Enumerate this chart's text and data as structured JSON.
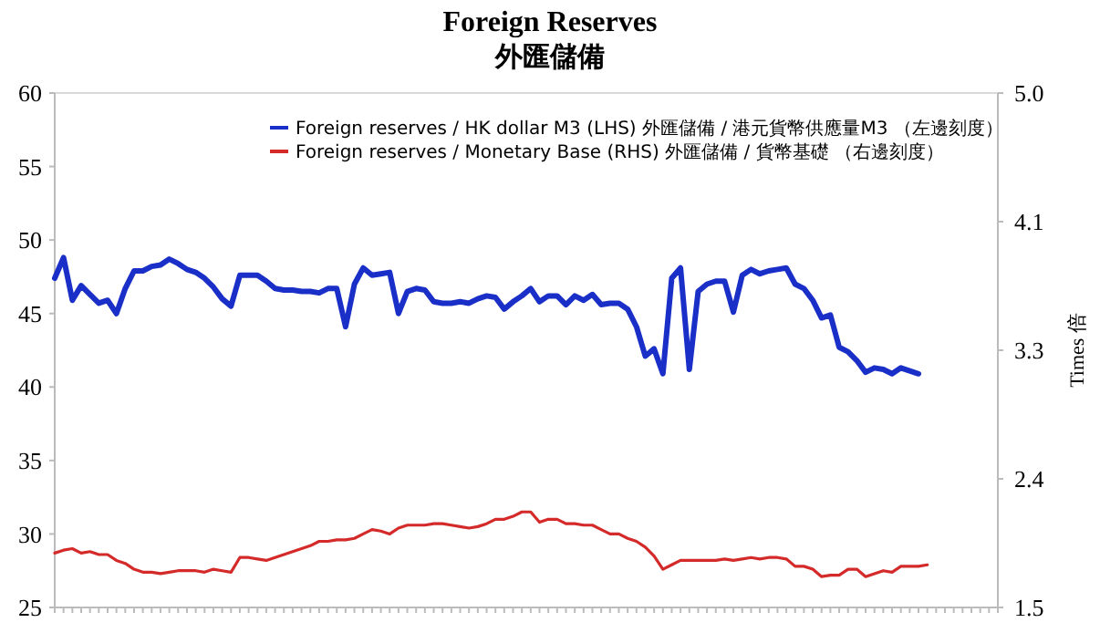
{
  "chart_data": {
    "type": "line",
    "title": "Foreign Reserves",
    "subtitle": "外匯儲備",
    "y2label": "Times 倍",
    "categories": [
      null,
      null,
      null,
      null,
      null,
      null,
      null,
      null,
      null,
      null,
      null,
      null,
      null,
      null,
      null,
      null,
      null,
      null,
      null,
      null,
      null,
      null,
      null,
      null,
      null,
      null,
      null,
      null,
      null,
      null,
      null,
      null,
      null,
      null,
      null,
      null,
      null,
      null,
      null,
      null,
      null,
      null,
      null,
      null,
      null,
      null,
      null,
      null,
      null,
      null,
      null,
      null,
      null,
      null,
      null,
      null,
      null,
      null,
      null,
      null,
      null,
      null,
      null,
      null,
      null,
      null,
      null,
      null,
      null,
      null,
      null,
      null,
      null,
      null,
      null,
      null,
      null,
      null,
      null,
      null,
      null,
      null,
      null,
      null,
      null,
      null,
      null,
      null,
      null,
      null,
      null,
      null,
      null,
      null,
      null,
      null,
      null,
      null,
      null,
      null,
      null,
      null,
      null,
      null,
      null,
      null,
      null,
      null
    ],
    "series": [
      {
        "name": "Foreign reserves / HK dollar M3 (LHS) 外匯儲備 / 港元貨幣供應量M3 （左邊刻度）",
        "color": "#1a2fc8",
        "values": [
          47.4,
          48.8,
          45.9,
          46.9,
          46.3,
          45.7,
          45.9,
          45.0,
          46.7,
          47.9,
          47.9,
          48.2,
          48.3,
          48.7,
          48.4,
          48.0,
          47.8,
          47.4,
          46.8,
          46.0,
          45.5,
          47.6,
          47.6,
          47.6,
          47.2,
          46.7,
          46.6,
          46.6,
          46.5,
          46.5,
          46.4,
          46.7,
          46.7,
          44.1,
          47.0,
          48.1,
          47.6,
          47.7,
          47.8,
          45.0,
          46.5,
          46.7,
          46.6,
          45.8,
          45.7,
          45.7,
          45.8,
          45.7,
          46.0,
          46.2,
          46.1,
          45.3,
          45.8,
          46.2,
          46.7,
          45.8,
          46.2,
          46.2,
          45.6,
          46.2,
          45.9,
          46.3,
          45.6,
          45.7,
          45.7,
          45.3,
          44.1,
          42.1,
          42.6,
          40.9,
          47.4,
          48.1,
          41.2,
          46.5,
          47.0,
          47.2,
          47.2,
          45.1,
          47.6,
          48.0,
          47.7,
          47.9,
          48.0,
          48.1,
          47.0,
          46.7,
          45.9,
          44.7,
          44.9,
          42.7,
          42.4,
          41.8,
          41.0,
          41.3,
          41.2,
          40.9,
          41.3,
          41.1,
          40.9,
          null,
          null,
          null,
          null,
          null,
          null,
          null,
          null,
          null
        ]
      },
      {
        "name": "Foreign reserves / Monetary Base (RHS) 外匯儲備 / 貨幣基礎 （右邊刻度）",
        "color": "#d42a2a",
        "axis": "y2",
        "values": [
          1.87,
          1.89,
          1.9,
          1.87,
          1.88,
          1.86,
          1.86,
          1.82,
          1.8,
          1.76,
          1.74,
          1.74,
          1.73,
          1.74,
          1.75,
          1.75,
          1.75,
          1.74,
          1.76,
          1.75,
          1.74,
          1.84,
          1.84,
          1.83,
          1.82,
          1.84,
          1.86,
          1.88,
          1.9,
          1.92,
          1.95,
          1.95,
          1.96,
          1.96,
          1.97,
          2.0,
          2.03,
          2.02,
          2.0,
          2.04,
          2.06,
          2.06,
          2.06,
          2.07,
          2.07,
          2.06,
          2.05,
          2.04,
          2.05,
          2.07,
          2.1,
          2.1,
          2.12,
          2.15,
          2.15,
          2.08,
          2.1,
          2.1,
          2.07,
          2.07,
          2.06,
          2.06,
          2.03,
          2.0,
          2.0,
          1.97,
          1.95,
          1.91,
          1.85,
          1.76,
          1.79,
          1.82,
          1.82,
          1.82,
          1.82,
          1.82,
          1.83,
          1.82,
          1.83,
          1.84,
          1.83,
          1.84,
          1.84,
          1.83,
          1.78,
          1.78,
          1.76,
          1.71,
          1.72,
          1.72,
          1.76,
          1.76,
          1.71,
          1.73,
          1.75,
          1.74,
          1.78,
          1.78,
          1.78,
          1.79,
          null,
          null,
          null,
          null,
          null,
          null,
          null,
          null
        ]
      }
    ],
    "ylim": [
      25,
      60
    ],
    "yticks": [
      25,
      30,
      35,
      40,
      45,
      50,
      55,
      60
    ],
    "y2lim": [
      1.5,
      5.0
    ],
    "y2ticks": [
      1.5,
      {
        "value": 2.375,
        "label": "2.4"
      },
      {
        "value": 3.25,
        "label": "3.3"
      },
      {
        "value": 4.125,
        "label": "4.1"
      },
      {
        "value": 5.0,
        "label": "5.0"
      }
    ],
    "legend": "top right",
    "grid": false,
    "marker": "none",
    "line_style": "solid",
    "tick_labels": "y"
  }
}
